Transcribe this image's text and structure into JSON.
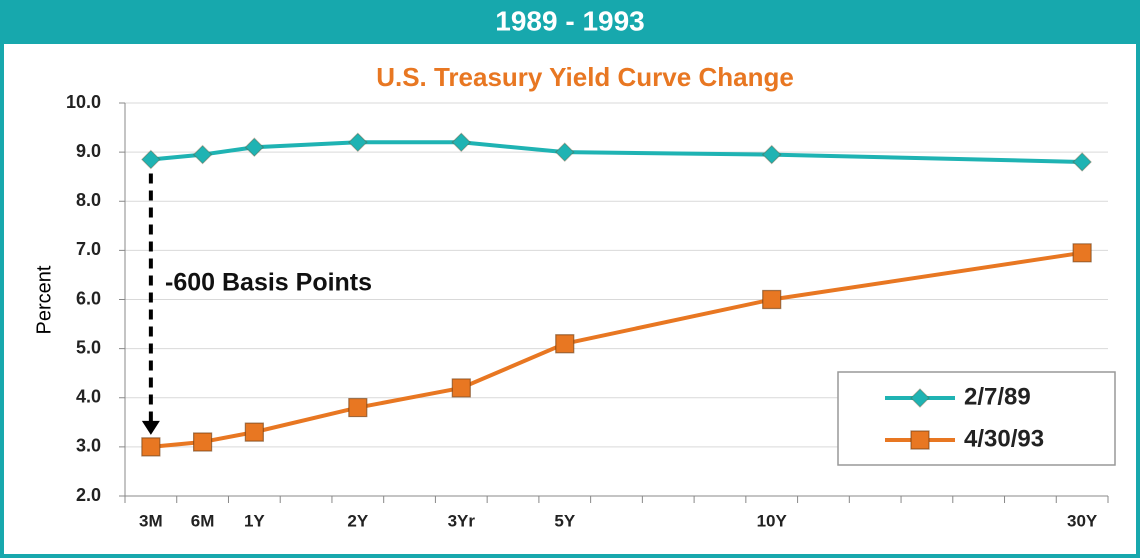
{
  "header": {
    "title": "1989 - 1993"
  },
  "chart_data": {
    "type": "line",
    "title": "U.S. Treasury Yield Curve Change",
    "ylabel": "Percent",
    "annotation": "-600 Basis Points",
    "categories": [
      "3M",
      "6M",
      "1Y",
      null,
      "2Y",
      null,
      "3Yr",
      null,
      "5Y",
      null,
      null,
      null,
      "10Y",
      null,
      null,
      null,
      null,
      null,
      "30Y"
    ],
    "series": [
      {
        "name": "2/7/89",
        "color": "#1fb3b3",
        "marker": "diamond",
        "values": [
          8.85,
          8.95,
          9.1,
          null,
          9.2,
          null,
          9.2,
          null,
          9.0,
          null,
          null,
          null,
          8.95,
          null,
          null,
          null,
          null,
          null,
          8.8
        ]
      },
      {
        "name": "4/30/93",
        "color": "#e87722",
        "marker": "square",
        "values": [
          3.0,
          3.1,
          3.3,
          null,
          3.8,
          null,
          4.2,
          null,
          5.1,
          null,
          null,
          null,
          6.0,
          null,
          null,
          null,
          null,
          null,
          6.95
        ]
      }
    ],
    "span_gaps": true,
    "ylim": [
      2,
      10
    ],
    "yticks": [
      {
        "value": 2,
        "label": "2.0"
      },
      {
        "value": 3,
        "label": "3.0"
      },
      {
        "value": 4,
        "label": "4.0"
      },
      {
        "value": 5,
        "label": "5.0"
      },
      {
        "value": 6,
        "label": "6.0"
      },
      {
        "value": 7,
        "label": "7.0"
      },
      {
        "value": 8,
        "label": "8.0"
      },
      {
        "value": 9,
        "label": "9.0"
      },
      {
        "value": 10,
        "label": "10.0"
      }
    ],
    "grid": true,
    "legend": "lower right"
  }
}
